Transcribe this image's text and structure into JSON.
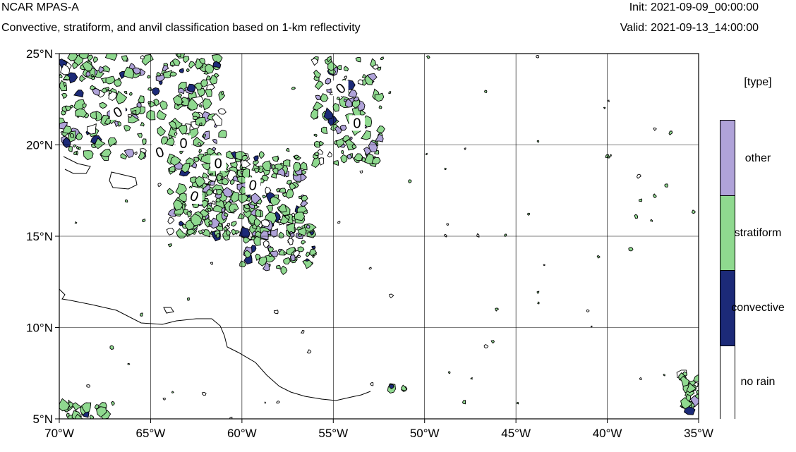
{
  "header": {
    "model": "NCAR MPAS-A",
    "subtitle": "Convective, stratiform, and anvil classification based on 1-km reflectivity",
    "init": "Init: 2021-09-09_00:00:00",
    "valid": "Valid: 2021-09-13_14:00:00"
  },
  "map": {
    "lat_labels": [
      "25°N",
      "20°N",
      "15°N",
      "10°N",
      "5°N"
    ],
    "lon_labels": [
      "70°W",
      "65°W",
      "60°W",
      "55°W",
      "50°W",
      "45°W",
      "40°W",
      "35°W"
    ],
    "lat_range": [
      5,
      25
    ],
    "lon_range": [
      -70,
      -35
    ],
    "grid": true,
    "contour_labels": [
      "0",
      "0",
      "0",
      "0",
      "0",
      "0",
      "0",
      "0"
    ]
  },
  "legend": {
    "title": "[type]",
    "items": [
      {
        "label": "other",
        "color": "#b0a3d9"
      },
      {
        "label": "stratiform",
        "color": "#8fd98f"
      },
      {
        "label": "convective",
        "color": "#1c2a78"
      },
      {
        "label": "no rain",
        "color": "#ffffff"
      }
    ]
  }
}
